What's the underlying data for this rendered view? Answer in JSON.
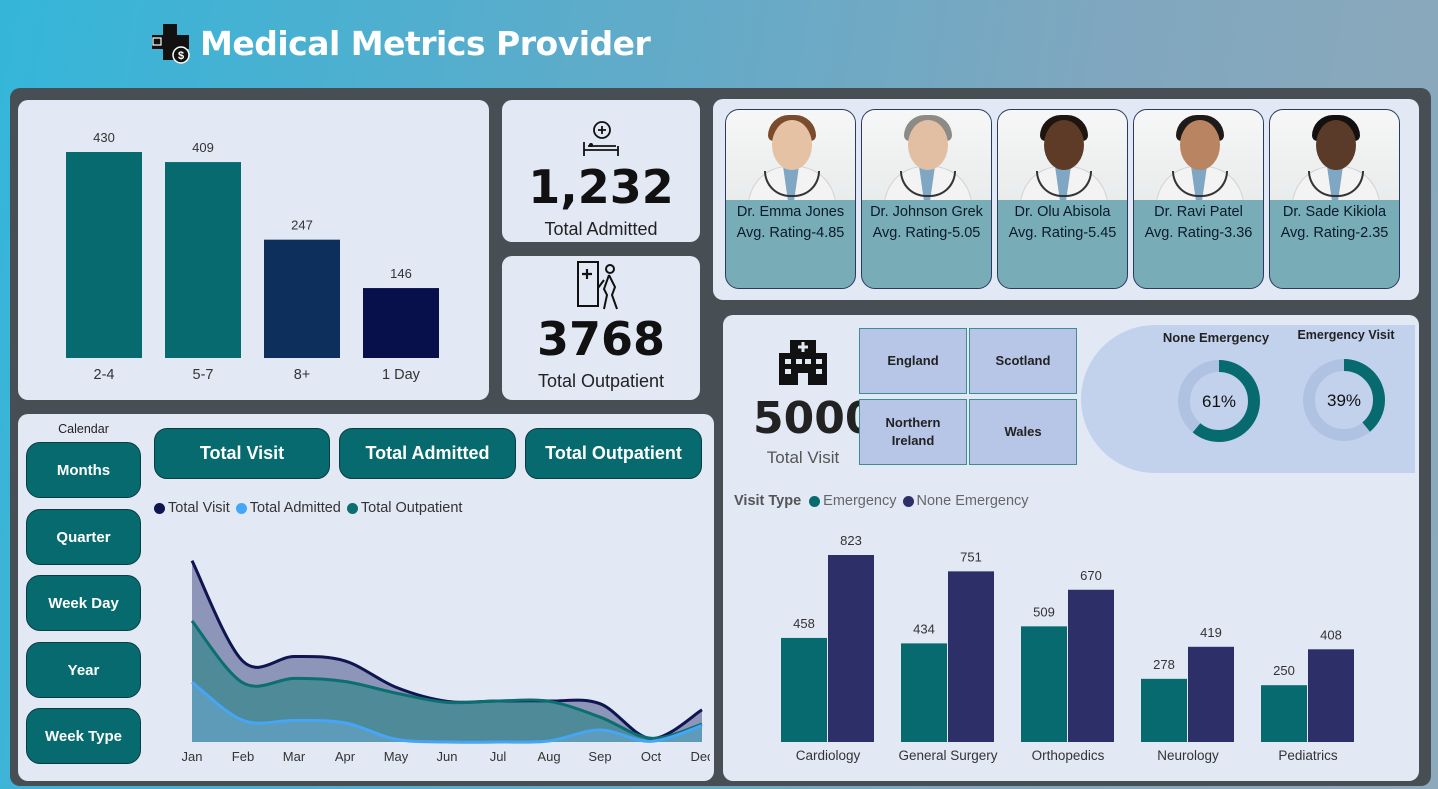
{
  "title": "Medical Metrics Provider",
  "colors": {
    "teal": "#066a6e",
    "navy": "#0c2f5c",
    "darknavy": "#08104c",
    "purple": "#2d3068"
  },
  "stay_chart": {
    "chart_data": {
      "type": "bar",
      "categories": [
        "2-4",
        "5-7",
        "8+",
        "1 Day"
      ],
      "values": [
        430,
        409,
        247,
        146
      ],
      "colors": [
        "#066a6e",
        "#066a6e",
        "#0c2f5c",
        "#08104c"
      ]
    }
  },
  "kpi_admitted": {
    "value": "1,232",
    "label": "Total Admitted",
    "icon": "hospital-bed-icon"
  },
  "kpi_outpatient": {
    "value": "3768",
    "label": "Total Outpatient",
    "icon": "outpatient-walking-icon"
  },
  "doctors": [
    {
      "name": "Dr. Emma Jones",
      "rating": "Avg. Rating-4.85"
    },
    {
      "name": "Dr. Johnson Grek",
      "rating": "Avg. Rating-5.05"
    },
    {
      "name": "Dr. Olu Abisola",
      "rating": "Avg. Rating-5.45"
    },
    {
      "name": "Dr. Ravi Patel",
      "rating": "Avg. Rating-3.36"
    },
    {
      "name": "Dr. Sade Kikiola",
      "rating": "Avg. Rating-2.35"
    }
  ],
  "visits": {
    "value": "5000",
    "label": "Total Visit",
    "icon": "hospital-building-icon"
  },
  "regions": [
    "England",
    "Scotland",
    "Northern Ireland",
    "Wales"
  ],
  "donuts": [
    {
      "label": "None Emergency",
      "percent": 61,
      "text": "61%"
    },
    {
      "label": "Emergency Visit",
      "percent": 39,
      "text": "39%"
    }
  ],
  "calendar": {
    "label": "Calendar",
    "buttons": [
      "Months",
      "Quarter",
      "Week Day",
      "Year",
      "Week Type"
    ]
  },
  "trend_tabs": [
    "Total Visit",
    "Total Admitted",
    "Total Outpatient"
  ],
  "trend_chart": {
    "chart_data": {
      "type": "area",
      "x": [
        "Jan",
        "Feb",
        "Mar",
        "Apr",
        "May",
        "Jun",
        "Jul",
        "Aug",
        "Sep",
        "Oct",
        "Dec"
      ],
      "series": [
        {
          "name": "Total Visit",
          "color": "#0e1550",
          "values": [
            530,
            236,
            250,
            237,
            160,
            119,
            120,
            120,
            112,
            10,
            94
          ]
        },
        {
          "name": "Total Admitted",
          "color": "#46a6f5",
          "values": [
            175,
            63,
            63,
            56,
            8,
            0,
            0,
            3,
            35,
            2,
            48
          ]
        },
        {
          "name": "Total Outpatient",
          "color": "#0b6e70",
          "values": [
            354,
            173,
            186,
            177,
            143,
            116,
            120,
            119,
            73,
            11,
            52
          ]
        }
      ]
    }
  },
  "visit_type": {
    "legend_title": "Visit Type",
    "chart_data": {
      "type": "bar",
      "categories": [
        "Cardiology",
        "General Surgery",
        "Orthopedics",
        "Neurology",
        "Pediatrics"
      ],
      "series": [
        {
          "name": "Emergency",
          "color": "#066a6e",
          "values": [
            458,
            434,
            509,
            278,
            250
          ]
        },
        {
          "name": "None Emergency",
          "color": "#2d3068",
          "values": [
            823,
            751,
            670,
            419,
            408
          ]
        }
      ]
    }
  }
}
